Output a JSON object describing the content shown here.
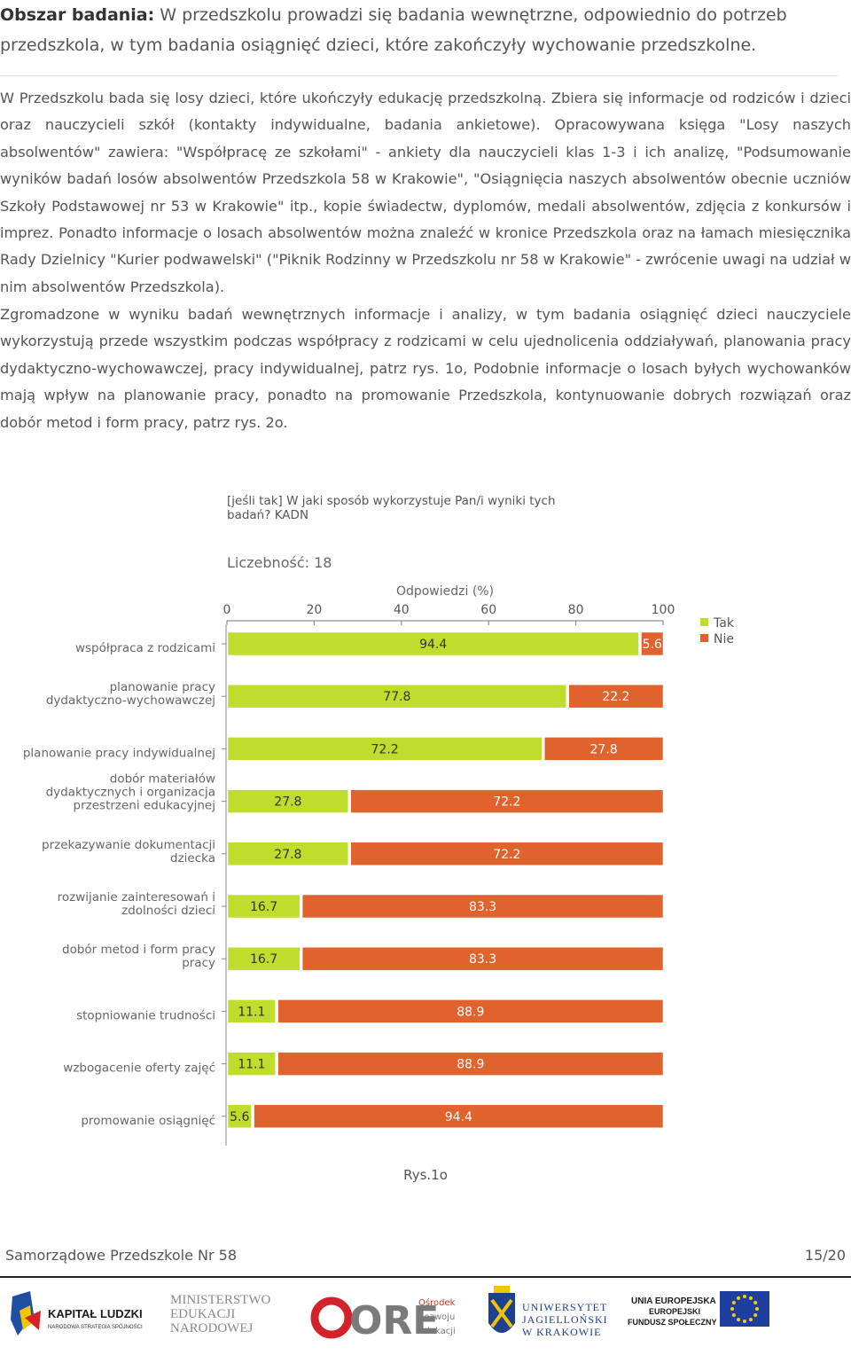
{
  "heading": {
    "label": "Obszar badania:",
    "text": " W przedszkolu prowadzi się badania wewnętrzne, odpowiednio do potrzeb przedszkola, w tym badania osiągnięć dzieci, które zakończyły wychowanie przedszkolne."
  },
  "paragraphs": [
    "W Przedszkolu bada się losy dzieci, które ukończyły edukację przedszkolną. Zbiera się informacje od rodziców i dzieci oraz nauczycieli szkół (kontakty indywidualne, badania ankietowe). Opracowywana księga \"Losy naszych absolwentów\" zawiera: \"Współpracę ze szkołami\" - ankiety dla nauczycieli klas 1-3 i ich analizę, \"Podsumowanie wyników badań losów absolwentów Przedszkola 58 w Krakowie\", \"Osiągnięcia naszych absolwentów obecnie uczniów Szkoły Podstawowej nr 53 w Krakowie\" itp., kopie świadectw, dyplomów, medali absolwentów, zdjęcia z konkursów i imprez. Ponadto informacje o losach absolwentów można znaleźć w kronice Przedszkola oraz na łamach miesięcznika Rady Dzielnicy \"Kurier podwawelski\" (\"Piknik Rodzinny w Przedszkolu nr 58 w Krakowie\" - zwrócenie uwagi na udział w nim absolwentów Przedszkola).",
    "Zgromadzone w wyniku badań wewnętrznych informacje i analizy, w tym badania osiągnięć dzieci nauczyciele wykorzystują przede wszystkim podczas współpracy z rodzicami w celu ujednolicenia oddziaływań, planowania pracy dydaktyczno-wychowawczej, pracy indywidualnej, patrz rys. 1o, Podobnie informacje o losach byłych wychowanków mają wpływ na planowanie pracy, ponadto na promowanie Przedszkola, kontynuowanie dobrych rozwiązań oraz dobór metod i form pracy, patrz rys. 2o."
  ],
  "chart_data": {
    "type": "bar",
    "orientation": "horizontal-stacked",
    "title": "[jeśli tak] W jaki sposób wykorzystuje Pan/i wyniki tych badań? KADN",
    "title_lines": [
      "[jeśli tak] W jaki sposób wykorzystuje Pan/i wyniki tych",
      "badań? KADN"
    ],
    "subtitle": "Liczebność: 18",
    "xlabel": "Odpowiedzi (%)",
    "xlim": [
      0,
      100
    ],
    "xticks": [
      0,
      20,
      40,
      60,
      80,
      100
    ],
    "legend_position": "top-right",
    "categories": [
      [
        "współpraca z rodzicami"
      ],
      [
        "planowanie pracy",
        "dydaktyczno-wychowawczej"
      ],
      [
        "planowanie pracy indywidualnej"
      ],
      [
        "dobór materiałów",
        "dydaktycznych i organizacja",
        "przestrzeni edukacyjnej"
      ],
      [
        "przekazywanie dokumentacji",
        "dziecka"
      ],
      [
        "rozwijanie zainteresowań i",
        "zdolności dzieci"
      ],
      [
        "dobór metod i form pracy",
        "pracy"
      ],
      [
        "stopniowanie trudności"
      ],
      [
        "wzbogacenie oferty zajęć"
      ],
      [
        "promowanie osiągnięć"
      ]
    ],
    "series": [
      {
        "name": "Tak",
        "color": "#c0dc2d",
        "values": [
          94.4,
          77.8,
          72.2,
          27.8,
          27.8,
          16.7,
          16.7,
          11.1,
          11.1,
          5.6
        ]
      },
      {
        "name": "Nie",
        "color": "#e0622c",
        "values": [
          5.6,
          22.2,
          27.8,
          72.2,
          72.2,
          83.3,
          83.3,
          88.9,
          88.9,
          94.4
        ]
      }
    ]
  },
  "caption": "Rys.1o",
  "footer": {
    "left": "Samorządowe Przedszkole Nr 58",
    "right": "15/20"
  },
  "logos": {
    "kapital": {
      "line1": "KAPITAŁ LUDZKI",
      "line2": "NARODOWA STRATEGIA SPÓJNOŚCI"
    },
    "men": {
      "line1": "MINISTERSTWO",
      "line2": "EDUKACJI",
      "line3": "NARODOWEJ"
    },
    "ore": {
      "mark": "ORE",
      "line1": "Ośrodek",
      "line2": "Rozwoju",
      "line3": "Edukacji"
    },
    "uj": {
      "line1": "UNIWERSYTET",
      "line2": "JAGIELLOŃSKI",
      "line3": "W KRAKOWIE"
    },
    "eu": {
      "line1": "UNIA EUROPEJSKA",
      "line2": "EUROPEJSKI",
      "line3": "FUNDUSZ SPOŁECZNY"
    }
  }
}
